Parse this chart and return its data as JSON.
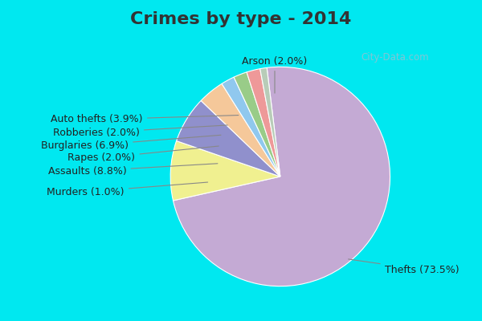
{
  "title": "Crimes by type - 2014",
  "labels": [
    "Thefts",
    "Assaults",
    "Burglaries",
    "Auto thefts",
    "Arson",
    "Robberies",
    "Rapes",
    "Murders"
  ],
  "values": [
    73.5,
    8.8,
    6.9,
    3.9,
    2.0,
    2.0,
    2.0,
    1.0
  ],
  "colors": [
    "#c4aad4",
    "#f0f090",
    "#9090cc",
    "#f5c89a",
    "#90c8ee",
    "#99cc88",
    "#ee9999",
    "#b8ccb8"
  ],
  "title_fontsize": 16,
  "label_fontsize": 9,
  "bg_cyan": "#00e8f0",
  "bg_main": "#d4ecd4",
  "title_color": "#333333",
  "watermark": "City-Data.com",
  "startangle": 97,
  "fig_width": 6.0,
  "fig_height": 4.0,
  "title_bar_height": 0.12
}
